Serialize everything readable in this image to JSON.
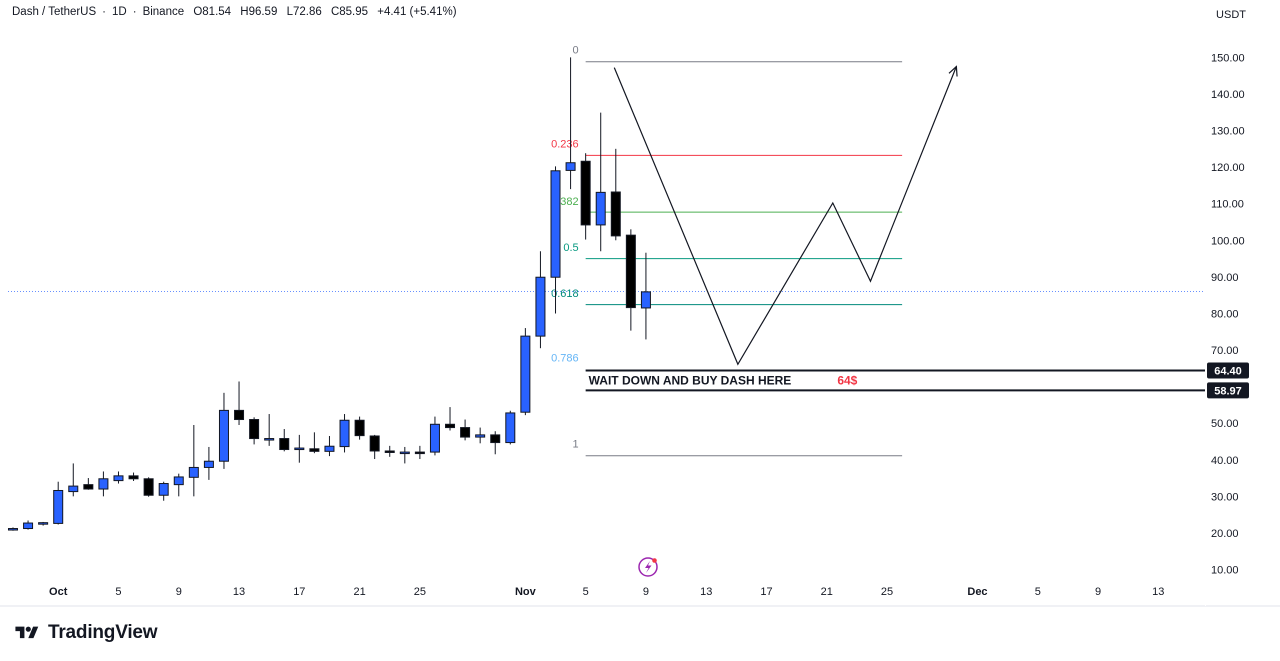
{
  "header": {
    "symbol": "Dash / TetherUS",
    "interval": "1D",
    "exchange": "Binance",
    "open": "O81.54",
    "high": "H96.59",
    "low": "L72.86",
    "close": "C85.95",
    "change": "+4.41 (+5.41%)"
  },
  "currency": "USDT",
  "brand": {
    "name": "TradingView"
  },
  "colors": {
    "up": "#2962ff",
    "down": "#000000",
    "fib_0": "#787b86",
    "fib_236": "#f23645",
    "fib_382": "#4caf50",
    "fib_5": "#089981",
    "fib_618": "#00897b",
    "fib_786": "#64b5f6",
    "fib_1": "#787b86",
    "note_price": "#f23645"
  },
  "chart_data": {
    "type": "candlestick",
    "ylim": [
      0,
      158
    ],
    "y_ticks": [
      10,
      20,
      30,
      40,
      50,
      60,
      70,
      80,
      90,
      100,
      110,
      120,
      130,
      140,
      150
    ],
    "y_tick_labels": [
      "10.00",
      "20.00",
      "30.00",
      "40.00",
      "50.00",
      "60.00",
      "70.00",
      "80.00",
      "90.00",
      "100.00",
      "110.00",
      "120.00",
      "130.00",
      "140.00",
      "150.00"
    ],
    "x_ticks": [
      {
        "day": 0,
        "label": "Oct"
      },
      {
        "day": 4,
        "label": "5"
      },
      {
        "day": 8,
        "label": "9"
      },
      {
        "day": 12,
        "label": "13"
      },
      {
        "day": 16,
        "label": "17"
      },
      {
        "day": 20,
        "label": "21"
      },
      {
        "day": 24,
        "label": "25"
      },
      {
        "day": 31,
        "label": "Nov"
      },
      {
        "day": 35,
        "label": "5"
      },
      {
        "day": 39,
        "label": "9"
      },
      {
        "day": 43,
        "label": "13"
      },
      {
        "day": 47,
        "label": "17"
      },
      {
        "day": 51,
        "label": "21"
      },
      {
        "day": 55,
        "label": "25"
      },
      {
        "day": 61,
        "label": "Dec"
      },
      {
        "day": 65,
        "label": "5"
      },
      {
        "day": 69,
        "label": "9"
      },
      {
        "day": 73,
        "label": "13"
      }
    ],
    "candles": [
      {
        "day": -3,
        "o": 21.0,
        "h": 21.5,
        "l": 20.6,
        "c": 21.2
      },
      {
        "day": -2,
        "o": 21.2,
        "h": 23.4,
        "l": 20.9,
        "c": 22.7
      },
      {
        "day": -1,
        "o": 22.5,
        "h": 23.0,
        "l": 22.0,
        "c": 22.8
      },
      {
        "day": 0,
        "o": 22.6,
        "h": 34.0,
        "l": 22.3,
        "c": 31.6
      },
      {
        "day": 1,
        "o": 31.3,
        "h": 39.0,
        "l": 30.0,
        "c": 32.8
      },
      {
        "day": 2,
        "o": 33.2,
        "h": 35.0,
        "l": 31.8,
        "c": 32.0
      },
      {
        "day": 3,
        "o": 32.0,
        "h": 36.8,
        "l": 30.0,
        "c": 34.8
      },
      {
        "day": 4,
        "o": 34.3,
        "h": 36.8,
        "l": 33.5,
        "c": 35.6
      },
      {
        "day": 5,
        "o": 35.6,
        "h": 36.5,
        "l": 34.2,
        "c": 34.8
      },
      {
        "day": 6,
        "o": 34.8,
        "h": 35.2,
        "l": 29.9,
        "c": 30.3
      },
      {
        "day": 7,
        "o": 30.3,
        "h": 34.0,
        "l": 28.8,
        "c": 33.5
      },
      {
        "day": 8,
        "o": 33.2,
        "h": 36.2,
        "l": 30.0,
        "c": 35.3
      },
      {
        "day": 9,
        "o": 35.2,
        "h": 49.5,
        "l": 30.0,
        "c": 37.9
      },
      {
        "day": 10,
        "o": 37.9,
        "h": 43.5,
        "l": 34.5,
        "c": 39.6
      },
      {
        "day": 11,
        "o": 39.6,
        "h": 58.3,
        "l": 37.5,
        "c": 53.5
      },
      {
        "day": 12,
        "o": 53.5,
        "h": 61.4,
        "l": 49.5,
        "c": 51.0
      },
      {
        "day": 13,
        "o": 51.0,
        "h": 51.6,
        "l": 44.2,
        "c": 45.8
      },
      {
        "day": 14,
        "o": 45.4,
        "h": 52.5,
        "l": 43.8,
        "c": 45.8
      },
      {
        "day": 15,
        "o": 45.8,
        "h": 48.4,
        "l": 42.3,
        "c": 42.8
      },
      {
        "day": 16,
        "o": 42.8,
        "h": 46.8,
        "l": 39.2,
        "c": 43.2
      },
      {
        "day": 17,
        "o": 43.0,
        "h": 47.5,
        "l": 41.8,
        "c": 42.3
      },
      {
        "day": 18,
        "o": 42.3,
        "h": 46.5,
        "l": 41.0,
        "c": 43.7
      },
      {
        "day": 19,
        "o": 43.6,
        "h": 52.5,
        "l": 42.0,
        "c": 50.8
      },
      {
        "day": 20,
        "o": 50.8,
        "h": 51.8,
        "l": 45.5,
        "c": 46.6
      },
      {
        "day": 21,
        "o": 46.5,
        "h": 46.8,
        "l": 40.2,
        "c": 42.4
      },
      {
        "day": 22,
        "o": 42.4,
        "h": 43.8,
        "l": 40.8,
        "c": 42.0
      },
      {
        "day": 23,
        "o": 42.0,
        "h": 43.5,
        "l": 39.0,
        "c": 42.1
      },
      {
        "day": 24,
        "o": 42.1,
        "h": 43.8,
        "l": 40.2,
        "c": 41.9
      },
      {
        "day": 25,
        "o": 42.1,
        "h": 51.8,
        "l": 41.2,
        "c": 49.7
      },
      {
        "day": 26,
        "o": 49.7,
        "h": 54.4,
        "l": 48.0,
        "c": 48.8
      },
      {
        "day": 27,
        "o": 48.8,
        "h": 51.0,
        "l": 45.3,
        "c": 46.2
      },
      {
        "day": 28,
        "o": 46.2,
        "h": 48.8,
        "l": 44.5,
        "c": 46.8
      },
      {
        "day": 29,
        "o": 46.8,
        "h": 47.8,
        "l": 41.5,
        "c": 44.7
      },
      {
        "day": 30,
        "o": 44.7,
        "h": 53.4,
        "l": 44.2,
        "c": 52.8
      },
      {
        "day": 31,
        "o": 53.0,
        "h": 76.0,
        "l": 52.2,
        "c": 73.8
      },
      {
        "day": 32,
        "o": 73.8,
        "h": 97.0,
        "l": 70.5,
        "c": 89.9
      },
      {
        "day": 33,
        "o": 89.9,
        "h": 120.2,
        "l": 80.0,
        "c": 119.0
      },
      {
        "day": 34,
        "o": 119.1,
        "h": 150.0,
        "l": 114.0,
        "c": 121.2
      },
      {
        "day": 35,
        "o": 121.6,
        "h": 123.8,
        "l": 100.2,
        "c": 104.2
      },
      {
        "day": 36,
        "o": 104.2,
        "h": 134.9,
        "l": 97.0,
        "c": 113.1
      },
      {
        "day": 37,
        "o": 113.2,
        "h": 125.0,
        "l": 100.0,
        "c": 101.2
      },
      {
        "day": 38,
        "o": 101.4,
        "h": 103.0,
        "l": 75.3,
        "c": 81.6
      },
      {
        "day": 39,
        "o": 81.5,
        "h": 96.6,
        "l": 72.9,
        "c": 85.9
      }
    ],
    "last_price": 86.0,
    "fib_levels": [
      {
        "level": "0",
        "price": 148.8,
        "color_key": "fib_0"
      },
      {
        "level": "0.236",
        "price": 123.2,
        "color_key": "fib_236"
      },
      {
        "level": "0.382",
        "price": 107.7,
        "color_key": "fib_382"
      },
      {
        "level": "0.5",
        "price": 95.0,
        "color_key": "fib_5"
      },
      {
        "level": "0.618",
        "price": 82.4,
        "color_key": "fib_618"
      },
      {
        "level": "0.786",
        "price": 64.5,
        "color_key": "fib_786"
      },
      {
        "level": "1",
        "price": 41.1,
        "color_key": "fib_1"
      }
    ],
    "fib_label_prices": [
      152.2,
      126.5,
      110.8,
      98.2,
      85.6,
      67.9,
      44.5
    ],
    "fib_range": {
      "start_day": 35,
      "end_day": 56
    },
    "projection_path": [
      {
        "day": 36.9,
        "price": 147.2
      },
      {
        "day": 45.1,
        "price": 66.1
      },
      {
        "day": 51.4,
        "price": 110.2
      },
      {
        "day": 53.9,
        "price": 88.8
      },
      {
        "day": 59.6,
        "price": 147.5
      }
    ],
    "zone": {
      "top": 64.4,
      "bottom": 58.97,
      "start_day": 35,
      "top_label": "64.40",
      "bottom_label": "58.97"
    },
    "note": {
      "text": "WAIT DOWN AND BUY DASH HERE",
      "price_text": "64$",
      "price": 61.7
    }
  }
}
